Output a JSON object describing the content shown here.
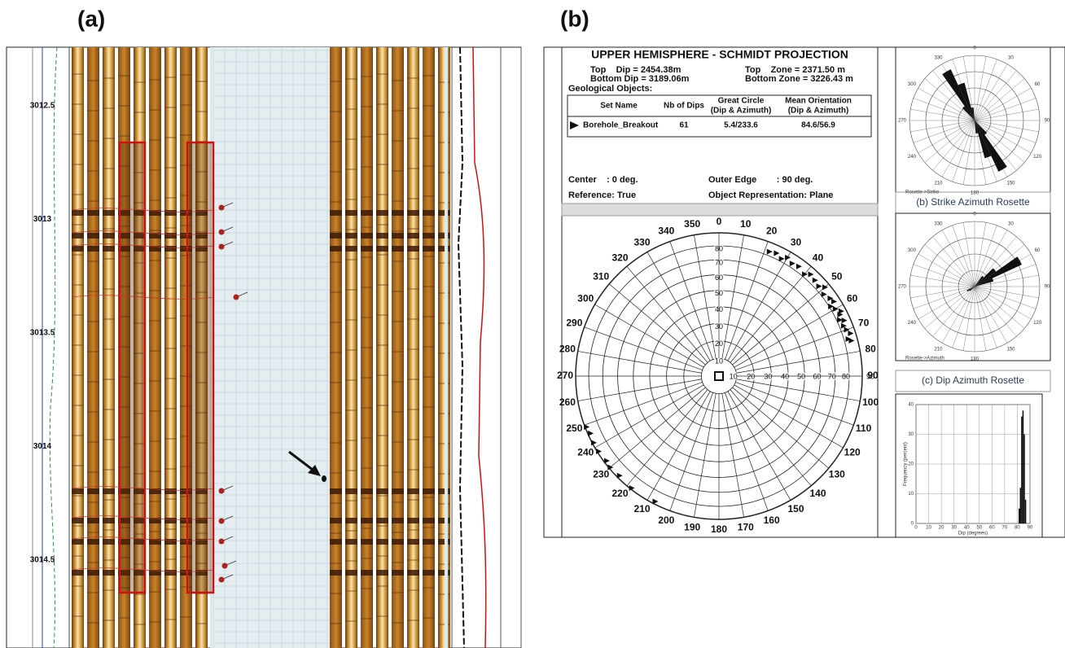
{
  "panel_a": {
    "label": "(a)",
    "depth_labels": [
      "3012.5",
      "3013",
      "3013.5",
      "3014",
      "3014.5"
    ]
  },
  "panel_b": {
    "label": "(b)",
    "stereonet": {
      "title": "UPPER HEMISPHERE - SCHMIDT PROJECTION",
      "top_dip": "Top    Dip = 2454.38m",
      "bottom_dip": "Bottom Dip = 3189.06m",
      "top_zone": "Top    Zone = 2371.50 m",
      "bottom_zone": "Bottom Zone = 3226.43 m",
      "objects_heading": "Geological Objects:",
      "table": {
        "header": [
          [
            "Set Name"
          ],
          [
            "Nb of Dips"
          ],
          [
            "Great Circle",
            "(Dip & Azimuth)"
          ],
          [
            "Mean Orientation",
            "(Dip & Azimuth)"
          ]
        ],
        "rows": [
          [
            "Borehole_Breakout",
            "61",
            "5.4/233.6",
            "84.6/56.9"
          ]
        ]
      },
      "center": "Center    : 0 deg.",
      "outer_edge": "Outer Edge        : 90 deg.",
      "reference": "Reference: True",
      "representation": "Object Representation: Plane",
      "azimuth_ticks": [
        0,
        10,
        20,
        30,
        40,
        50,
        60,
        70,
        80,
        90,
        100,
        110,
        120,
        130,
        140,
        150,
        160,
        170,
        180,
        190,
        200,
        210,
        220,
        230,
        240,
        250,
        260,
        270,
        280,
        290,
        300,
        310,
        320,
        330,
        340,
        350
      ],
      "dip_ticks": [
        10,
        20,
        30,
        40,
        50,
        60,
        70,
        80,
        90
      ],
      "poles": {
        "azimuth": [
          22,
          25,
          28,
          30,
          33,
          36,
          40,
          42,
          45,
          48,
          50,
          52,
          55,
          57,
          58,
          60,
          62,
          63,
          65,
          66,
          68,
          70,
          72,
          74,
          75,
          207,
          218,
          225,
          230,
          233,
          238,
          242,
          246,
          249
        ],
        "dip": [
          83,
          84,
          82,
          85,
          83,
          84,
          82,
          85,
          84,
          83,
          86,
          82,
          84,
          85,
          81,
          83,
          86,
          84,
          82,
          85,
          83,
          84,
          86,
          83,
          85,
          88,
          89,
          88,
          89,
          88,
          89,
          89,
          88,
          89
        ]
      }
    },
    "strike_rosette": {
      "caption": "(b) Strike Azimuth Rosette",
      "axis_label": "Rosette->Strike",
      "ticks": [
        0,
        30,
        60,
        90,
        120,
        150,
        180,
        210,
        240,
        270,
        300,
        330
      ],
      "petal_azimuth": [
        140,
        150,
        160,
        170,
        320,
        330,
        340,
        350
      ],
      "petal_values": [
        8,
        26,
        18,
        6,
        8,
        26,
        18,
        6
      ]
    },
    "dip_rosette": {
      "caption": "(c) Dip Azimuth Rosette",
      "axis_label": "Rosette->Azimuth",
      "ticks": [
        0,
        30,
        60,
        90,
        120,
        150,
        180,
        210,
        240,
        270,
        300,
        330
      ],
      "petal_azimuth": [
        40,
        50,
        60,
        70,
        230,
        240
      ],
      "petal_values": [
        6,
        12,
        24,
        9,
        3,
        4
      ]
    },
    "histogram": {
      "bins": [
        81,
        82,
        83,
        84,
        85,
        86,
        87
      ],
      "counts": [
        5,
        12,
        36,
        38,
        30,
        8
      ],
      "xlim": [
        0,
        90
      ],
      "xticks": [
        0,
        10,
        20,
        30,
        40,
        50,
        60,
        70,
        80,
        90
      ],
      "ylim": [
        0,
        40
      ],
      "yticks": [
        0,
        10,
        20,
        30,
        40
      ],
      "xlabel": "Dip (degrees)",
      "ylabel": "Frequency (percent)"
    }
  }
}
